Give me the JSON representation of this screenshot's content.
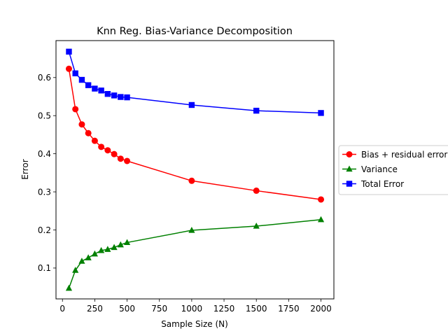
{
  "chart_data": {
    "type": "line",
    "title": "Knn Reg. Bias-Variance Decomposition",
    "xlabel": "Sample Size (N)",
    "ylabel": "Error",
    "xlim": [
      -50,
      2100
    ],
    "ylim": [
      0.019,
      0.697
    ],
    "xticks": [
      0,
      250,
      500,
      750,
      1000,
      1250,
      1500,
      1750,
      2000
    ],
    "yticks": [
      0.1,
      0.2,
      0.3,
      0.4,
      0.5,
      0.6
    ],
    "grid": false,
    "legend_position": "right, outside plot",
    "x": [
      50,
      100,
      150,
      200,
      250,
      300,
      350,
      400,
      450,
      500,
      1000,
      1500,
      2000
    ],
    "series": [
      {
        "name": "Bias + residual error",
        "color": "#ff0000",
        "marker": "circle",
        "values": [
          0.623,
          0.517,
          0.477,
          0.454,
          0.434,
          0.418,
          0.409,
          0.399,
          0.387,
          0.381,
          0.329,
          0.303,
          0.28
        ]
      },
      {
        "name": "Variance",
        "color": "#008000",
        "marker": "triangle",
        "values": [
          0.047,
          0.094,
          0.118,
          0.127,
          0.137,
          0.146,
          0.149,
          0.154,
          0.161,
          0.167,
          0.199,
          0.21,
          0.227
        ]
      },
      {
        "name": "Total Error",
        "color": "#0000ff",
        "marker": "square",
        "values": [
          0.668,
          0.611,
          0.594,
          0.58,
          0.571,
          0.566,
          0.557,
          0.553,
          0.549,
          0.548,
          0.528,
          0.513,
          0.507
        ]
      }
    ]
  }
}
